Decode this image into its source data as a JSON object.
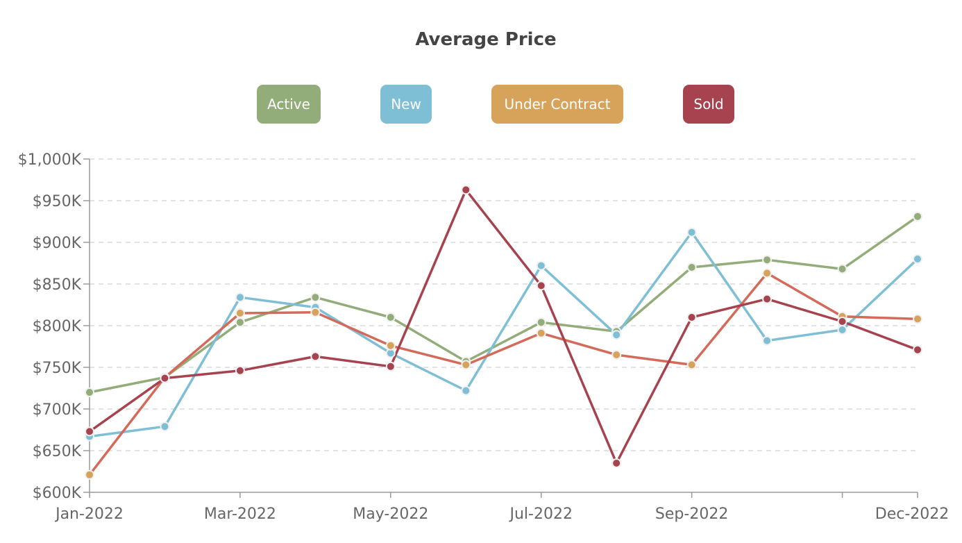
{
  "chart_data": {
    "type": "line",
    "title": "Average Price",
    "x": [
      "Jan-2022",
      "Feb-2022",
      "Mar-2022",
      "Apr-2022",
      "May-2022",
      "Jun-2022",
      "Jul-2022",
      "Aug-2022",
      "Sep-2022",
      "Oct-2022",
      "Nov-2022",
      "Dec-2022"
    ],
    "x_tick_labels": [
      "Jan-2022",
      "Mar-2022",
      "May-2022",
      "Jul-2022",
      "Sep-2022",
      "Dec-2022"
    ],
    "y_tick_labels": [
      "$600K",
      "$650K",
      "$700K",
      "$750K",
      "$800K",
      "$850K",
      "$900K",
      "$950K",
      "$1,000K"
    ],
    "ylim": [
      600,
      1000
    ],
    "y_unit": "thousands of dollars",
    "grid": true,
    "legend_position": "top-center",
    "series": [
      {
        "name": "Active",
        "color": "#93ad7a",
        "values": [
          720,
          738,
          804,
          834,
          810,
          757,
          804,
          793,
          870,
          879,
          868,
          931
        ]
      },
      {
        "name": "New",
        "color": "#7fbfd6",
        "values": [
          667,
          679,
          834,
          822,
          767,
          722,
          872,
          789,
          912,
          782,
          795,
          880
        ]
      },
      {
        "name": "Under Contract",
        "color": "#d7a35b",
        "line_color": "#d46a5a",
        "values": [
          621,
          738,
          815,
          816,
          776,
          753,
          791,
          765,
          753,
          863,
          811,
          808
        ]
      },
      {
        "name": "Sold",
        "color": "#a6434f",
        "values": [
          673,
          737,
          746,
          763,
          751,
          963,
          848,
          635,
          810,
          832,
          805,
          771
        ]
      }
    ]
  }
}
